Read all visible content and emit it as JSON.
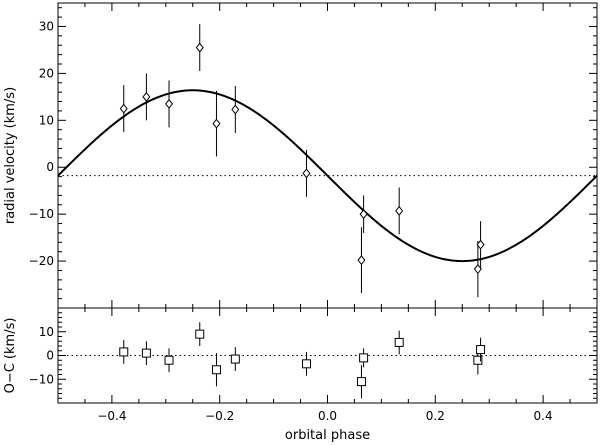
{
  "chart_data": [
    {
      "type": "scatter",
      "xlabel": "orbital phase",
      "ylabel": "radial velocity (km/s)",
      "xlim": [
        -0.5,
        0.5
      ],
      "ylim": [
        -30,
        35
      ],
      "x_ticks": [
        -0.4,
        -0.2,
        0,
        0.2,
        0.4
      ],
      "x_tick_labels": [
        "−0.4",
        "−0.2",
        "0.0",
        "0.2",
        "0.4"
      ],
      "y_ticks": [
        -20,
        -10,
        0,
        10,
        20,
        30
      ],
      "y_tick_labels": [
        "−20",
        "−10",
        "0",
        "10",
        "20",
        "30"
      ],
      "marker": "diamond",
      "systemic_velocity": -1.8,
      "fit_curve": {
        "model": "sine",
        "gamma": -1.8,
        "amplitude": 18.2,
        "phase_of_maximum": -0.25
      },
      "points": [
        {
          "x": -0.378,
          "y": 12.5,
          "err": 5.0
        },
        {
          "x": -0.336,
          "y": 15.0,
          "err": 5.0
        },
        {
          "x": -0.294,
          "y": 13.5,
          "err": 5.0
        },
        {
          "x": -0.237,
          "y": 25.5,
          "err": 5.0
        },
        {
          "x": -0.206,
          "y": 9.3,
          "err": 7.0
        },
        {
          "x": -0.171,
          "y": 12.3,
          "err": 5.0
        },
        {
          "x": -0.039,
          "y": -1.3,
          "err": 5.0
        },
        {
          "x": 0.063,
          "y": -19.8,
          "err": 7.0
        },
        {
          "x": 0.067,
          "y": -10.0,
          "err": 4.0
        },
        {
          "x": 0.133,
          "y": -9.3,
          "err": 5.0
        },
        {
          "x": 0.279,
          "y": -21.7,
          "err": 6.0
        },
        {
          "x": 0.284,
          "y": -16.5,
          "err": 5.0
        }
      ]
    },
    {
      "type": "scatter",
      "xlabel": "orbital phase",
      "ylabel": "O−C (km/s)",
      "xlim": [
        -0.5,
        0.5
      ],
      "ylim": [
        -20,
        20
      ],
      "x_ticks": [
        -0.4,
        -0.2,
        0,
        0.2,
        0.4
      ],
      "x_tick_labels": [
        "−0.4",
        "−0.2",
        "0.0",
        "0.2",
        "0.4"
      ],
      "y_ticks": [
        -10,
        0,
        10
      ],
      "y_tick_labels": [
        "−10",
        "0",
        "10"
      ],
      "marker": "square",
      "zero_line": 0,
      "points": [
        {
          "x": -0.378,
          "y": 1.5,
          "err": 5.0
        },
        {
          "x": -0.336,
          "y": 1.0,
          "err": 5.0
        },
        {
          "x": -0.294,
          "y": -2.0,
          "err": 5.0
        },
        {
          "x": -0.237,
          "y": 9.0,
          "err": 5.0
        },
        {
          "x": -0.206,
          "y": -6.0,
          "err": 7.0
        },
        {
          "x": -0.171,
          "y": -1.5,
          "err": 5.0
        },
        {
          "x": -0.039,
          "y": -3.5,
          "err": 5.0
        },
        {
          "x": 0.063,
          "y": -11.0,
          "err": 7.0
        },
        {
          "x": 0.067,
          "y": -1.0,
          "err": 4.0
        },
        {
          "x": 0.133,
          "y": 5.5,
          "err": 5.0
        },
        {
          "x": 0.279,
          "y": -2.0,
          "err": 6.0
        },
        {
          "x": 0.284,
          "y": 2.5,
          "err": 5.0
        }
      ]
    }
  ]
}
